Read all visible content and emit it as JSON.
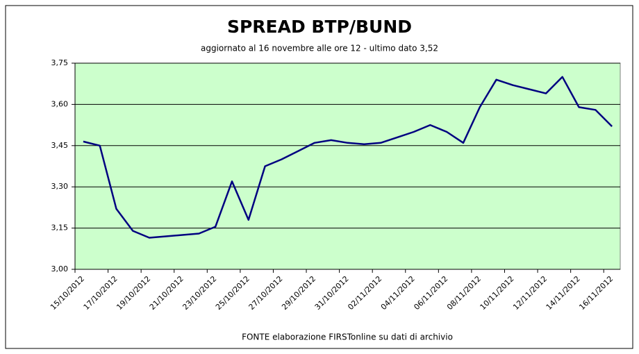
{
  "chart_data": {
    "type": "line",
    "title": "SPREAD  BTP/BUND",
    "subtitle": "aggiornato al 16 novembre alle ore 12 - ultimo dato 3,52",
    "source": "FONTE elaborazione FIRSTonline su dati di archivio",
    "categories": [
      "15/10/2012",
      null,
      "17/10/2012",
      null,
      "19/10/2012",
      null,
      "21/10/2012",
      null,
      "23/10/2012",
      null,
      "25/10/2012",
      null,
      "27/10/2012",
      null,
      "29/10/2012",
      null,
      "31/10/2012",
      null,
      "02/11/2012",
      null,
      "04/11/2012",
      null,
      "06/11/2012",
      null,
      "08/11/2012",
      null,
      "10/11/2012",
      null,
      "12/11/2012",
      null,
      "14/11/2012",
      null,
      "16/11/2012"
    ],
    "series": [
      {
        "color": "#000080",
        "values": [
          3.465,
          3.45,
          3.22,
          3.14,
          3.115,
          3.12,
          3.125,
          3.13,
          3.155,
          3.32,
          3.18,
          3.375,
          3.4,
          3.43,
          3.46,
          3.47,
          3.46,
          3.455,
          3.46,
          3.48,
          3.5,
          3.525,
          3.5,
          3.46,
          3.59,
          3.69,
          3.67,
          3.655,
          3.64,
          3.7,
          3.59,
          3.58,
          3.52
        ]
      }
    ],
    "ylim": [
      3.0,
      3.75
    ],
    "yticks": [
      {
        "value": 3.0,
        "label": "3,00"
      },
      {
        "value": 3.15,
        "label": "3,15"
      },
      {
        "value": 3.3,
        "label": "3,30"
      },
      {
        "value": 3.45,
        "label": "3,45"
      },
      {
        "value": 3.6,
        "label": "3,60"
      },
      {
        "value": 3.75,
        "label": "3,75"
      }
    ],
    "grid": true,
    "background": "#ccffcc"
  }
}
